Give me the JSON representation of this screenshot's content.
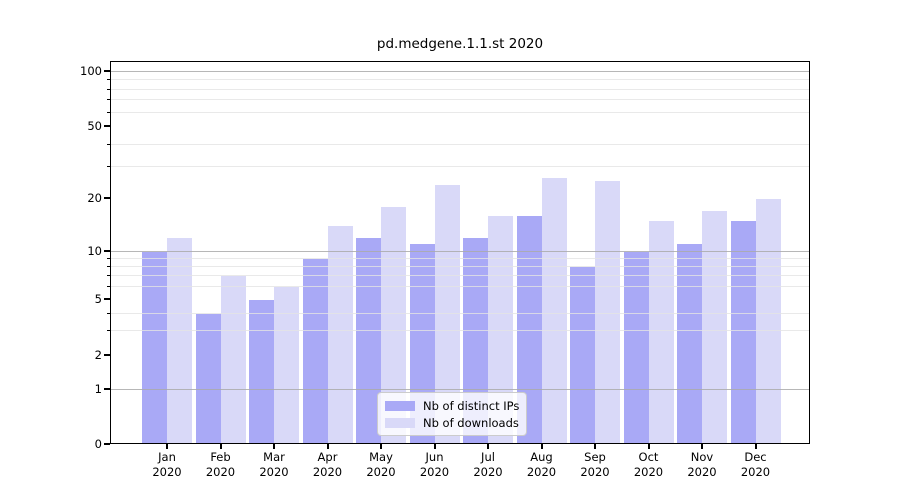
{
  "title": "pd.medgene.1.1.st 2020",
  "colors": {
    "distinct_ips_bar": "#a9a9f6",
    "downloads_bar": "#d9d9f8",
    "axis": "#000000",
    "major_gridline": "#aaaaaa",
    "minor_gridline": "#e4e4e4",
    "legend_border": "#cccccc"
  },
  "legend": {
    "items": [
      {
        "label": "Nb of distinct IPs",
        "color": "#a9a9f6"
      },
      {
        "label": "Nb of downloads",
        "color": "#d9d9f8"
      }
    ]
  },
  "chart_data": {
    "type": "bar",
    "title": "pd.medgene.1.1.st 2020",
    "categories": [
      "Jan 2020",
      "Feb 2020",
      "Mar 2020",
      "Apr 2020",
      "May 2020",
      "Jun 2020",
      "Jul 2020",
      "Aug 2020",
      "Sep 2020",
      "Oct 2020",
      "Nov 2020",
      "Dec 2020"
    ],
    "month_labels": [
      "Jan",
      "Feb",
      "Mar",
      "Apr",
      "May",
      "Jun",
      "Jul",
      "Aug",
      "Sep",
      "Oct",
      "Nov",
      "Dec"
    ],
    "year_label": "2020",
    "series": [
      {
        "name": "Nb of distinct IPs",
        "color": "#a9a9f6",
        "values": [
          10,
          4,
          5,
          9,
          12,
          11,
          12,
          16,
          8,
          10,
          11,
          15
        ]
      },
      {
        "name": "Nb of downloads",
        "color": "#d9d9f8",
        "values": [
          12,
          7,
          6,
          14,
          18,
          24,
          16,
          26,
          25,
          15,
          17,
          20
        ]
      }
    ],
    "xlabel": "",
    "ylabel": "",
    "yscale": "log-like",
    "ytick_values": [
      0,
      1,
      2,
      5,
      10,
      20,
      50,
      100
    ],
    "major_grid_values": [
      1,
      10,
      100
    ],
    "minor_grid_values": [
      3,
      4,
      6,
      7,
      8,
      9,
      30,
      40,
      60,
      70,
      80,
      90
    ],
    "ylim": [
      0,
      115
    ],
    "grid": "on",
    "legend_position": "lower center"
  }
}
